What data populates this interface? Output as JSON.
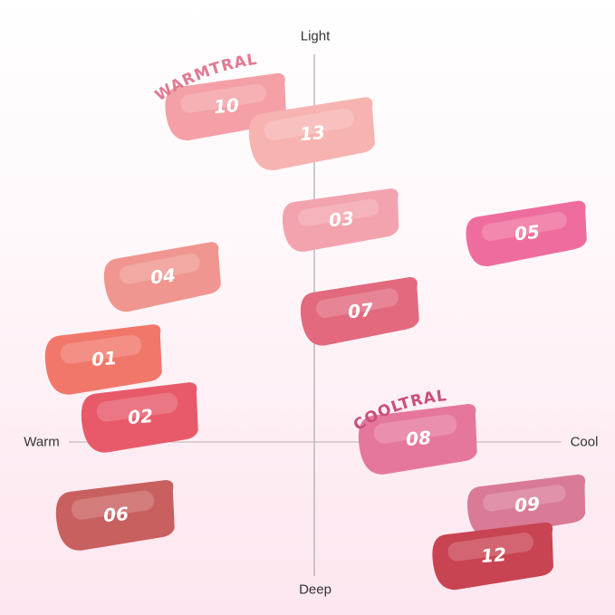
{
  "axes": {
    "top": "Light",
    "bottom": "Deep",
    "left": "Warm",
    "right": "Cool"
  },
  "groups": [
    {
      "label": "WARMTRAL",
      "color": "#e07a92"
    },
    {
      "label": "COOLTRAL",
      "color": "#c94f7c"
    }
  ],
  "swatches": [
    {
      "label": "10",
      "color": "#f4a0a6"
    },
    {
      "label": "13",
      "color": "#f7b3b0"
    },
    {
      "label": "03",
      "color": "#f3a3ae"
    },
    {
      "label": "05",
      "color": "#ef6d9e"
    },
    {
      "label": "04",
      "color": "#f0958f"
    },
    {
      "label": "07",
      "color": "#e2697e"
    },
    {
      "label": "01",
      "color": "#f1776a"
    },
    {
      "label": "02",
      "color": "#e85a6a"
    },
    {
      "label": "08",
      "color": "#e6779c"
    },
    {
      "label": "06",
      "color": "#c8605f"
    },
    {
      "label": "09",
      "color": "#d97a96"
    },
    {
      "label": "12",
      "color": "#c84452"
    }
  ]
}
